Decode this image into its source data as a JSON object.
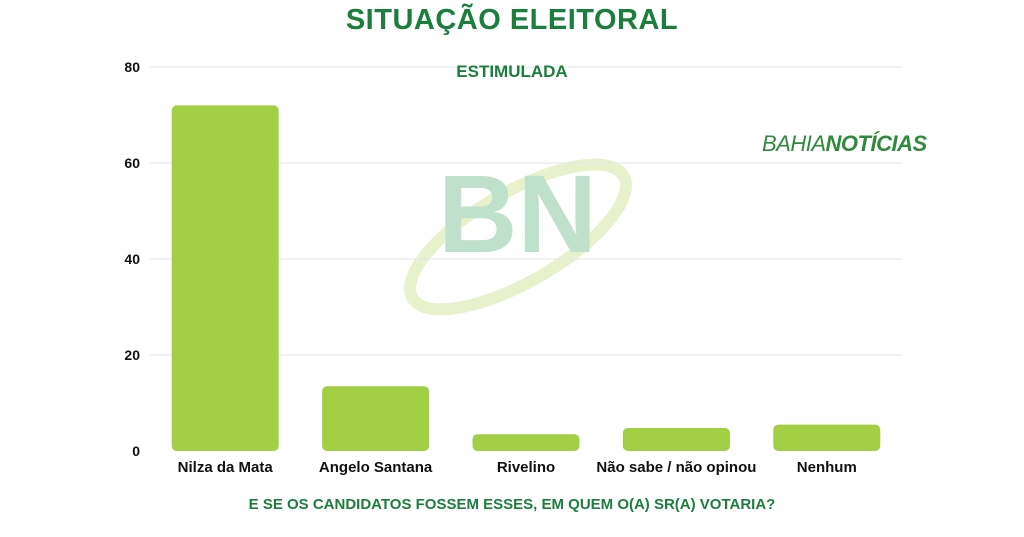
{
  "header": {
    "title": "SITUAÇÃO ELEITORAL",
    "subtitle": "ESTIMULADA"
  },
  "brand": {
    "part1": "BAHIA",
    "part2": "NOTÍCIAS",
    "watermark": "BN"
  },
  "footer": {
    "question": "E SE OS CANDIDATOS FOSSEM ESSES, EM QUEM O(A) SR(A) VOTARIA?"
  },
  "colors": {
    "bar": "#a3cf45",
    "title": "#1a7f3c",
    "grid": "#e6e6e6"
  },
  "chart_data": {
    "type": "bar",
    "categories": [
      "Nilza da Mata",
      "Angelo Santana",
      "Rivelino",
      "Não sabe / não opinou",
      "Nenhum"
    ],
    "values": [
      72,
      13.5,
      3.5,
      4.8,
      5.5
    ],
    "title": "SITUAÇÃO ELEITORAL",
    "subtitle": "ESTIMULADA",
    "xlabel": "E SE OS CANDIDATOS FOSSEM ESSES, EM QUEM O(A) SR(A) VOTARIA?",
    "ylabel": "",
    "ylim": [
      0,
      80
    ],
    "yticks": [
      0,
      20,
      40,
      60,
      80
    ],
    "grid": true,
    "legend": "none"
  }
}
